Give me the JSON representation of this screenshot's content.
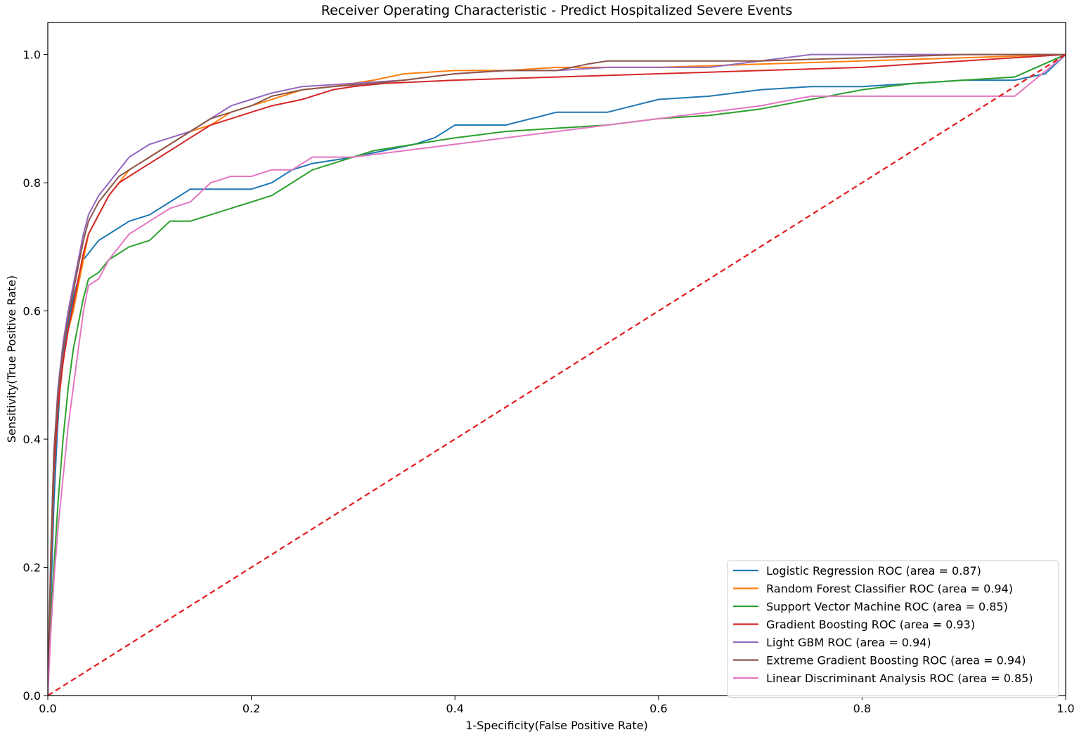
{
  "chart_data": {
    "type": "line",
    "title": "Receiver Operating Characteristic - Predict Hospitalized Severe Events",
    "xlabel": "1-Specificity(False Positive Rate)",
    "ylabel": "Sensitivity(True Positive Rate)",
    "xlim": [
      0.0,
      1.0
    ],
    "ylim": [
      0.0,
      1.05
    ],
    "xticks": [
      "0.0",
      "0.2",
      "0.4",
      "0.6",
      "0.8",
      "1.0"
    ],
    "yticks": [
      "0.0",
      "0.2",
      "0.4",
      "0.6",
      "0.8",
      "1.0"
    ],
    "grid": false,
    "legend_position": "lower-right",
    "diagonal": {
      "x": [
        0,
        1
      ],
      "y": [
        0,
        1
      ],
      "color": "#e41a1c",
      "style": "dashed"
    },
    "series": [
      {
        "name": "Logistic Regression ROC (area = 0.87)",
        "color": "#1f77b4",
        "x": [
          0,
          0.003,
          0.006,
          0.009,
          0.012,
          0.016,
          0.02,
          0.025,
          0.03,
          0.035,
          0.04,
          0.05,
          0.06,
          0.07,
          0.08,
          0.09,
          0.1,
          0.12,
          0.14,
          0.16,
          0.18,
          0.2,
          0.22,
          0.24,
          0.26,
          0.3,
          0.33,
          0.36,
          0.38,
          0.4,
          0.43,
          0.45,
          0.5,
          0.55,
          0.6,
          0.65,
          0.7,
          0.75,
          0.8,
          0.85,
          0.9,
          0.95,
          0.98,
          1.0
        ],
        "y": [
          0,
          0.15,
          0.3,
          0.4,
          0.48,
          0.54,
          0.58,
          0.62,
          0.65,
          0.68,
          0.69,
          0.71,
          0.72,
          0.73,
          0.74,
          0.745,
          0.75,
          0.77,
          0.79,
          0.79,
          0.79,
          0.79,
          0.8,
          0.82,
          0.83,
          0.84,
          0.85,
          0.86,
          0.87,
          0.89,
          0.89,
          0.89,
          0.91,
          0.91,
          0.93,
          0.935,
          0.945,
          0.95,
          0.95,
          0.955,
          0.96,
          0.96,
          0.97,
          1.0
        ]
      },
      {
        "name": "Random Forest Classifier ROC (area = 0.94)",
        "color": "#ff7f0e",
        "x": [
          0,
          0.003,
          0.006,
          0.01,
          0.015,
          0.02,
          0.025,
          0.03,
          0.035,
          0.04,
          0.05,
          0.06,
          0.07,
          0.08,
          0.09,
          0.1,
          0.11,
          0.12,
          0.14,
          0.16,
          0.18,
          0.2,
          0.22,
          0.25,
          0.28,
          0.3,
          0.32,
          0.35,
          0.4,
          0.45,
          0.5,
          0.55,
          0.6,
          0.7,
          0.8,
          0.9,
          1.0
        ],
        "y": [
          0,
          0.2,
          0.35,
          0.45,
          0.52,
          0.57,
          0.6,
          0.64,
          0.68,
          0.72,
          0.75,
          0.78,
          0.8,
          0.82,
          0.83,
          0.84,
          0.85,
          0.86,
          0.88,
          0.89,
          0.91,
          0.92,
          0.93,
          0.945,
          0.95,
          0.955,
          0.96,
          0.97,
          0.975,
          0.975,
          0.98,
          0.98,
          0.98,
          0.985,
          0.99,
          0.995,
          1.0
        ]
      },
      {
        "name": "Support Vector Machine ROC (area = 0.85)",
        "color": "#2ca02c",
        "x": [
          0,
          0.003,
          0.006,
          0.01,
          0.015,
          0.02,
          0.025,
          0.03,
          0.035,
          0.04,
          0.05,
          0.06,
          0.07,
          0.08,
          0.09,
          0.1,
          0.12,
          0.14,
          0.16,
          0.18,
          0.2,
          0.22,
          0.24,
          0.26,
          0.3,
          0.32,
          0.34,
          0.36,
          0.4,
          0.45,
          0.5,
          0.55,
          0.6,
          0.65,
          0.7,
          0.75,
          0.8,
          0.85,
          0.9,
          0.95,
          1.0
        ],
        "y": [
          0,
          0.12,
          0.2,
          0.3,
          0.4,
          0.48,
          0.54,
          0.58,
          0.62,
          0.65,
          0.66,
          0.68,
          0.69,
          0.7,
          0.705,
          0.71,
          0.74,
          0.74,
          0.75,
          0.76,
          0.77,
          0.78,
          0.8,
          0.82,
          0.84,
          0.85,
          0.855,
          0.86,
          0.87,
          0.88,
          0.885,
          0.89,
          0.9,
          0.905,
          0.915,
          0.93,
          0.945,
          0.955,
          0.96,
          0.965,
          1.0
        ]
      },
      {
        "name": "Gradient Boosting ROC (area = 0.93)",
        "color": "#d62728",
        "x": [
          0,
          0.003,
          0.006,
          0.01,
          0.015,
          0.02,
          0.025,
          0.03,
          0.035,
          0.04,
          0.05,
          0.06,
          0.07,
          0.08,
          0.09,
          0.1,
          0.11,
          0.12,
          0.14,
          0.16,
          0.18,
          0.2,
          0.22,
          0.25,
          0.28,
          0.3,
          0.33,
          0.4,
          0.5,
          0.6,
          0.7,
          0.8,
          0.9,
          1.0
        ],
        "y": [
          0,
          0.2,
          0.35,
          0.45,
          0.52,
          0.57,
          0.61,
          0.65,
          0.69,
          0.72,
          0.75,
          0.78,
          0.8,
          0.81,
          0.82,
          0.83,
          0.84,
          0.85,
          0.87,
          0.89,
          0.9,
          0.91,
          0.92,
          0.93,
          0.945,
          0.95,
          0.955,
          0.96,
          0.965,
          0.97,
          0.975,
          0.98,
          0.99,
          1.0
        ]
      },
      {
        "name": "Light GBM ROC (area = 0.94)",
        "color": "#9467bd",
        "x": [
          0,
          0.003,
          0.006,
          0.01,
          0.015,
          0.02,
          0.025,
          0.03,
          0.035,
          0.04,
          0.05,
          0.06,
          0.07,
          0.08,
          0.09,
          0.1,
          0.12,
          0.14,
          0.16,
          0.18,
          0.2,
          0.22,
          0.25,
          0.3,
          0.35,
          0.4,
          0.45,
          0.5,
          0.55,
          0.6,
          0.65,
          0.7,
          0.75,
          0.8,
          0.9,
          1.0
        ],
        "y": [
          0,
          0.22,
          0.38,
          0.48,
          0.55,
          0.6,
          0.64,
          0.68,
          0.72,
          0.75,
          0.78,
          0.8,
          0.82,
          0.84,
          0.85,
          0.86,
          0.87,
          0.88,
          0.9,
          0.92,
          0.93,
          0.94,
          0.95,
          0.955,
          0.96,
          0.97,
          0.975,
          0.975,
          0.98,
          0.98,
          0.98,
          0.99,
          1.0,
          1.0,
          1.0,
          1.0
        ]
      },
      {
        "name": "Extreme Gradient Boosting ROC (area = 0.94)",
        "color": "#8c564b",
        "x": [
          0,
          0.003,
          0.006,
          0.01,
          0.015,
          0.02,
          0.025,
          0.03,
          0.035,
          0.04,
          0.05,
          0.06,
          0.07,
          0.08,
          0.09,
          0.1,
          0.12,
          0.14,
          0.16,
          0.18,
          0.2,
          0.22,
          0.25,
          0.28,
          0.32,
          0.35,
          0.4,
          0.45,
          0.5,
          0.53,
          0.55,
          0.6,
          0.7,
          0.8,
          0.9,
          1.0
        ],
        "y": [
          0,
          0.22,
          0.38,
          0.47,
          0.54,
          0.59,
          0.63,
          0.67,
          0.71,
          0.74,
          0.77,
          0.79,
          0.81,
          0.82,
          0.83,
          0.84,
          0.86,
          0.88,
          0.9,
          0.91,
          0.92,
          0.935,
          0.945,
          0.95,
          0.955,
          0.96,
          0.97,
          0.975,
          0.975,
          0.985,
          0.99,
          0.99,
          0.99,
          0.995,
          1.0,
          1.0
        ]
      },
      {
        "name": "Linear Discriminant Analysis ROC (area = 0.85)",
        "color": "#e377c2",
        "x": [
          0,
          0.003,
          0.006,
          0.01,
          0.015,
          0.02,
          0.025,
          0.03,
          0.035,
          0.04,
          0.05,
          0.06,
          0.07,
          0.08,
          0.09,
          0.1,
          0.12,
          0.14,
          0.16,
          0.18,
          0.2,
          0.22,
          0.24,
          0.26,
          0.3,
          0.35,
          0.4,
          0.45,
          0.5,
          0.55,
          0.6,
          0.65,
          0.7,
          0.75,
          0.8,
          0.85,
          0.9,
          0.95,
          1.0
        ],
        "y": [
          0,
          0.1,
          0.18,
          0.26,
          0.34,
          0.42,
          0.48,
          0.54,
          0.6,
          0.64,
          0.65,
          0.68,
          0.7,
          0.72,
          0.73,
          0.74,
          0.76,
          0.77,
          0.8,
          0.81,
          0.81,
          0.82,
          0.82,
          0.84,
          0.84,
          0.85,
          0.86,
          0.87,
          0.88,
          0.89,
          0.9,
          0.91,
          0.92,
          0.935,
          0.935,
          0.935,
          0.935,
          0.935,
          1.0
        ]
      }
    ]
  }
}
